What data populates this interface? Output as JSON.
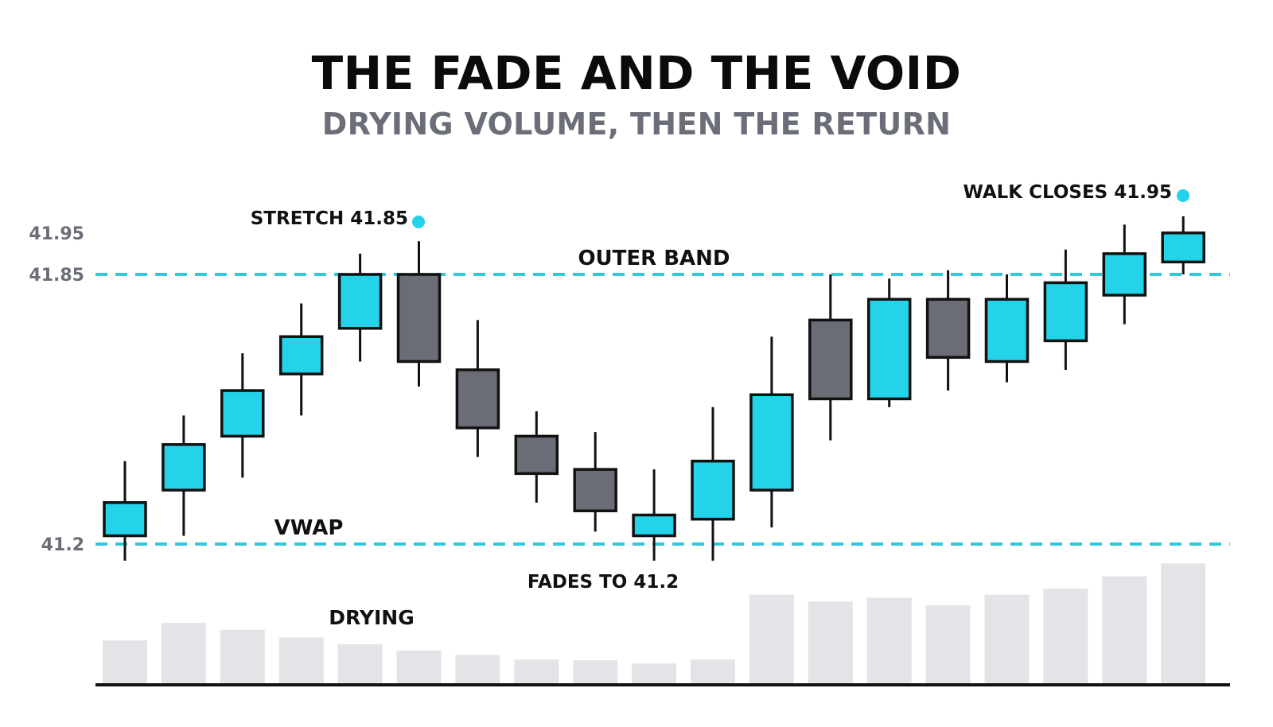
{
  "title": "THE FADE AND THE VOID",
  "subtitle": "DRYING VOLUME, THEN THE RETURN",
  "colors": {
    "bull": "#22d3ea",
    "bear": "#6a6d76",
    "outline": "#111111",
    "band": "#34c7dc",
    "volume": "#e3e4e7",
    "tick_label": "#6b6e78"
  },
  "chart_data": {
    "type": "candlestick",
    "y_ticks": [
      {
        "value": 41.95,
        "label": "41.95"
      },
      {
        "value": 41.85,
        "label": "41.85"
      },
      {
        "value": 41.2,
        "label": "41.2"
      }
    ],
    "reference_lines": [
      {
        "name": "OUTER BAND",
        "value": 41.85,
        "style": "dashed"
      },
      {
        "name": "VWAP",
        "value": 41.2,
        "style": "dashed"
      }
    ],
    "candles": [
      {
        "open": 41.22,
        "close": 41.3,
        "high": 41.4,
        "low": 41.16
      },
      {
        "open": 41.33,
        "close": 41.44,
        "high": 41.51,
        "low": 41.22
      },
      {
        "open": 41.46,
        "close": 41.57,
        "high": 41.66,
        "low": 41.36
      },
      {
        "open": 41.61,
        "close": 41.7,
        "high": 41.78,
        "low": 41.51
      },
      {
        "open": 41.72,
        "close": 41.85,
        "high": 41.9,
        "low": 41.64
      },
      {
        "open": 41.85,
        "close": 41.64,
        "high": 41.93,
        "low": 41.58
      },
      {
        "open": 41.62,
        "close": 41.48,
        "high": 41.74,
        "low": 41.41
      },
      {
        "open": 41.46,
        "close": 41.37,
        "high": 41.52,
        "low": 41.3
      },
      {
        "open": 41.38,
        "close": 41.28,
        "high": 41.47,
        "low": 41.23
      },
      {
        "open": 41.22,
        "close": 41.27,
        "high": 41.38,
        "low": 41.16
      },
      {
        "open": 41.26,
        "close": 41.4,
        "high": 41.53,
        "low": 41.16
      },
      {
        "open": 41.33,
        "close": 41.56,
        "high": 41.7,
        "low": 41.24
      },
      {
        "open": 41.74,
        "close": 41.55,
        "high": 41.85,
        "low": 41.45
      },
      {
        "open": 41.55,
        "close": 41.79,
        "high": 41.84,
        "low": 41.53
      },
      {
        "open": 41.79,
        "close": 41.65,
        "high": 41.86,
        "low": 41.57
      },
      {
        "open": 41.64,
        "close": 41.79,
        "high": 41.85,
        "low": 41.59
      },
      {
        "open": 41.69,
        "close": 41.83,
        "high": 41.91,
        "low": 41.62
      },
      {
        "open": 41.8,
        "close": 41.9,
        "high": 41.97,
        "low": 41.73
      },
      {
        "open": 41.88,
        "close": 41.95,
        "high": 41.99,
        "low": 41.85
      }
    ],
    "volume": [
      56,
      79,
      70,
      60,
      51,
      43,
      37,
      31,
      30,
      26,
      31,
      116,
      107,
      112,
      102,
      116,
      124,
      140,
      157
    ],
    "annotations": [
      {
        "text": "STRETCH 41.85",
        "candle": 5,
        "marker": true
      },
      {
        "text": "WALK CLOSES 41.95",
        "candle": 18,
        "marker": true
      },
      {
        "text": "OUTER BAND"
      },
      {
        "text": "VWAP"
      },
      {
        "text": "FADES TO 41.2"
      },
      {
        "text": "DRYING"
      }
    ]
  }
}
